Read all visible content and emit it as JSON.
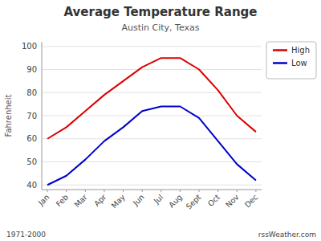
{
  "chart_data": {
    "type": "line",
    "title": "Average Temperature Range",
    "subtitle": "Austin City, Texas",
    "y_label": "Fahrenheit",
    "categories": [
      "Jan",
      "Feb",
      "Mar",
      "Apr",
      "May",
      "Jun",
      "Jul",
      "Aug",
      "Sept",
      "Oct",
      "Nov",
      "Dec"
    ],
    "series": [
      {
        "name": "High",
        "color": "#dd0000",
        "values": [
          60,
          65,
          72,
          79,
          85,
          91,
          95,
          95,
          90,
          81,
          70,
          63
        ]
      },
      {
        "name": "Low",
        "color": "#0000cc",
        "values": [
          40,
          44,
          51,
          59,
          65,
          72,
          74,
          74,
          69,
          59,
          49,
          42
        ]
      }
    ],
    "ylim": [
      38,
      102
    ],
    "yticks": [
      40,
      50,
      60,
      70,
      80,
      90,
      100
    ],
    "grid": true,
    "legend": "upper right",
    "annotations": [
      "1971-2000",
      "rssWeather.com"
    ]
  }
}
